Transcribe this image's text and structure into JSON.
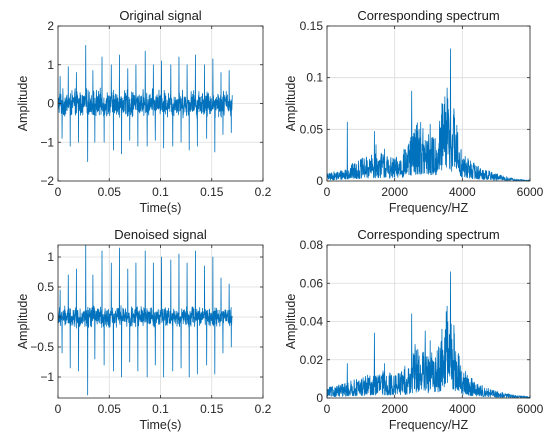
{
  "chart_data": [
    {
      "type": "line",
      "title": "Original signal",
      "xlabel": "Time(s)",
      "ylabel": "Amplitude",
      "xlim": [
        0,
        0.2
      ],
      "ylim": [
        -2,
        2
      ],
      "xticks": [
        0,
        0.05,
        0.1,
        0.15,
        0.2
      ],
      "xtick_labels": [
        "0",
        "0.05",
        "0.1",
        "0.15",
        "0.2"
      ],
      "yticks": [
        -2,
        -1,
        0,
        1,
        2
      ],
      "ytick_labels": [
        "−2",
        "−1",
        "0",
        "1",
        "2"
      ],
      "grid": true,
      "series": [
        {
          "color": "#0072bd",
          "x_range": [
            0,
            0.17
          ],
          "baseline": 0,
          "noise_amplitude": 0.4,
          "peaks": [
            {
              "x": 0.002,
              "y": 0.7
            },
            {
              "x": 0.004,
              "y": -0.9
            },
            {
              "x": 0.01,
              "y": 0.95
            },
            {
              "x": 0.012,
              "y": -1.1
            },
            {
              "x": 0.018,
              "y": 0.8
            },
            {
              "x": 0.02,
              "y": -1.0
            },
            {
              "x": 0.027,
              "y": 1.5
            },
            {
              "x": 0.029,
              "y": -1.5
            },
            {
              "x": 0.034,
              "y": 0.85
            },
            {
              "x": 0.036,
              "y": -1.0
            },
            {
              "x": 0.043,
              "y": 1.2
            },
            {
              "x": 0.045,
              "y": -1.0
            },
            {
              "x": 0.052,
              "y": 1.0
            },
            {
              "x": 0.054,
              "y": -1.2
            },
            {
              "x": 0.06,
              "y": 1.25
            },
            {
              "x": 0.062,
              "y": -1.3
            },
            {
              "x": 0.068,
              "y": 0.9
            },
            {
              "x": 0.07,
              "y": -0.95
            },
            {
              "x": 0.076,
              "y": 1.0
            },
            {
              "x": 0.078,
              "y": -1.1
            },
            {
              "x": 0.085,
              "y": 1.35
            },
            {
              "x": 0.087,
              "y": -1.1
            },
            {
              "x": 0.093,
              "y": 1.0
            },
            {
              "x": 0.095,
              "y": -0.95
            },
            {
              "x": 0.101,
              "y": 1.1
            },
            {
              "x": 0.103,
              "y": -1.15
            },
            {
              "x": 0.11,
              "y": 1.0
            },
            {
              "x": 0.112,
              "y": -1.1
            },
            {
              "x": 0.118,
              "y": 1.2
            },
            {
              "x": 0.12,
              "y": -1.0
            },
            {
              "x": 0.126,
              "y": 1.0
            },
            {
              "x": 0.128,
              "y": -1.2
            },
            {
              "x": 0.134,
              "y": 1.25
            },
            {
              "x": 0.136,
              "y": -1.1
            },
            {
              "x": 0.143,
              "y": 1.0
            },
            {
              "x": 0.145,
              "y": -0.9
            },
            {
              "x": 0.151,
              "y": 1.15
            },
            {
              "x": 0.153,
              "y": -1.25
            },
            {
              "x": 0.159,
              "y": 0.8
            },
            {
              "x": 0.161,
              "y": -0.8
            },
            {
              "x": 0.167,
              "y": 0.85
            },
            {
              "x": 0.169,
              "y": -0.75
            }
          ]
        }
      ]
    },
    {
      "type": "line",
      "title": "Corresponding spectrum",
      "xlabel": "Frequency/HZ",
      "ylabel": "Amplitude",
      "xlim": [
        0,
        6000
      ],
      "ylim": [
        0,
        0.15
      ],
      "xticks": [
        0,
        2000,
        4000,
        6000
      ],
      "xtick_labels": [
        "0",
        "2000",
        "4000",
        "6000"
      ],
      "yticks": [
        0,
        0.05,
        0.1,
        0.15
      ],
      "ytick_labels": [
        "0",
        "0.05",
        "0.1",
        "0.15"
      ],
      "grid": true,
      "series": [
        {
          "color": "#0072bd",
          "x_range": [
            0,
            6000
          ],
          "envelope": [
            [
              0,
              0.004
            ],
            [
              400,
              0.006
            ],
            [
              1000,
              0.012
            ],
            [
              1600,
              0.016
            ],
            [
              2000,
              0.012
            ],
            [
              2400,
              0.02
            ],
            [
              2700,
              0.035
            ],
            [
              3000,
              0.022
            ],
            [
              3300,
              0.03
            ],
            [
              3500,
              0.05
            ],
            [
              3700,
              0.045
            ],
            [
              4000,
              0.015
            ],
            [
              4500,
              0.008
            ],
            [
              5000,
              0.004
            ],
            [
              5600,
              0.001
            ],
            [
              6000,
              0.0005
            ]
          ],
          "peaks": [
            {
              "x": 600,
              "y": 0.057
            },
            {
              "x": 1100,
              "y": 0.02
            },
            {
              "x": 1400,
              "y": 0.048
            },
            {
              "x": 1450,
              "y": 0.035
            },
            {
              "x": 1700,
              "y": 0.031
            },
            {
              "x": 2500,
              "y": 0.087
            },
            {
              "x": 2600,
              "y": 0.05
            },
            {
              "x": 2750,
              "y": 0.04
            },
            {
              "x": 3000,
              "y": 0.045
            },
            {
              "x": 3050,
              "y": 0.055
            },
            {
              "x": 3400,
              "y": 0.075
            },
            {
              "x": 3550,
              "y": 0.09
            },
            {
              "x": 3650,
              "y": 0.128
            },
            {
              "x": 3750,
              "y": 0.07
            },
            {
              "x": 4200,
              "y": 0.012
            }
          ]
        }
      ]
    },
    {
      "type": "line",
      "title": "Denoised signal",
      "xlabel": "Time(s)",
      "ylabel": "Amplitude",
      "xlim": [
        0,
        0.2
      ],
      "ylim": [
        -1.35,
        1.2
      ],
      "xticks": [
        0,
        0.05,
        0.1,
        0.15,
        0.2
      ],
      "xtick_labels": [
        "0",
        "0.05",
        "0.1",
        "0.15",
        "0.2"
      ],
      "yticks": [
        -1,
        -0.5,
        0,
        0.5,
        1
      ],
      "ytick_labels": [
        "−1",
        "−0.5",
        "0",
        "0.5",
        "1"
      ],
      "grid": true,
      "series": [
        {
          "color": "#0072bd",
          "x_range": [
            0,
            0.17
          ],
          "baseline": 0,
          "noise_amplitude": 0.2,
          "peaks": [
            {
              "x": 0.002,
              "y": 0.45
            },
            {
              "x": 0.004,
              "y": -0.6
            },
            {
              "x": 0.01,
              "y": 0.7
            },
            {
              "x": 0.012,
              "y": -0.85
            },
            {
              "x": 0.018,
              "y": 0.8
            },
            {
              "x": 0.02,
              "y": -0.9
            },
            {
              "x": 0.027,
              "y": 1.2
            },
            {
              "x": 0.029,
              "y": -1.3
            },
            {
              "x": 0.034,
              "y": 0.7
            },
            {
              "x": 0.036,
              "y": -0.7
            },
            {
              "x": 0.043,
              "y": 1.1
            },
            {
              "x": 0.045,
              "y": -0.8
            },
            {
              "x": 0.052,
              "y": 0.9
            },
            {
              "x": 0.054,
              "y": -0.9
            },
            {
              "x": 0.06,
              "y": 1.15
            },
            {
              "x": 0.062,
              "y": -1.0
            },
            {
              "x": 0.068,
              "y": 0.8
            },
            {
              "x": 0.07,
              "y": -0.75
            },
            {
              "x": 0.076,
              "y": 0.9
            },
            {
              "x": 0.078,
              "y": -0.9
            },
            {
              "x": 0.085,
              "y": 1.1
            },
            {
              "x": 0.087,
              "y": -1.0
            },
            {
              "x": 0.093,
              "y": 0.9
            },
            {
              "x": 0.095,
              "y": -0.8
            },
            {
              "x": 0.101,
              "y": 1.0
            },
            {
              "x": 0.103,
              "y": -1.0
            },
            {
              "x": 0.11,
              "y": 0.95
            },
            {
              "x": 0.112,
              "y": -0.9
            },
            {
              "x": 0.118,
              "y": 1.05
            },
            {
              "x": 0.12,
              "y": -0.85
            },
            {
              "x": 0.126,
              "y": 0.9
            },
            {
              "x": 0.128,
              "y": -1.0
            },
            {
              "x": 0.134,
              "y": 1.1
            },
            {
              "x": 0.136,
              "y": -0.95
            },
            {
              "x": 0.143,
              "y": 0.85
            },
            {
              "x": 0.145,
              "y": -0.8
            },
            {
              "x": 0.151,
              "y": 1.0
            },
            {
              "x": 0.153,
              "y": -0.95
            },
            {
              "x": 0.159,
              "y": 0.65
            },
            {
              "x": 0.161,
              "y": -0.6
            },
            {
              "x": 0.167,
              "y": 0.55
            },
            {
              "x": 0.169,
              "y": -0.5
            }
          ]
        }
      ]
    },
    {
      "type": "line",
      "title": "Corresponding spectrum",
      "xlabel": "Frequency/HZ",
      "ylabel": "Amplitude",
      "xlim": [
        0,
        6000
      ],
      "ylim": [
        0,
        0.08
      ],
      "xticks": [
        0,
        2000,
        4000,
        6000
      ],
      "xtick_labels": [
        "0",
        "2000",
        "4000",
        "6000"
      ],
      "yticks": [
        0,
        0.02,
        0.04,
        0.06,
        0.08
      ],
      "ytick_labels": [
        "0",
        "0.02",
        "0.04",
        "0.06",
        "0.08"
      ],
      "grid": true,
      "series": [
        {
          "color": "#0072bd",
          "x_range": [
            0,
            6000
          ],
          "envelope": [
            [
              0,
              0.003
            ],
            [
              400,
              0.004
            ],
            [
              1000,
              0.006
            ],
            [
              1600,
              0.008
            ],
            [
              2000,
              0.007
            ],
            [
              2400,
              0.01
            ],
            [
              2700,
              0.016
            ],
            [
              3000,
              0.012
            ],
            [
              3300,
              0.016
            ],
            [
              3500,
              0.026
            ],
            [
              3700,
              0.022
            ],
            [
              4000,
              0.008
            ],
            [
              4500,
              0.004
            ],
            [
              5000,
              0.002
            ],
            [
              5600,
              0.0008
            ],
            [
              6000,
              0.0004
            ]
          ],
          "peaks": [
            {
              "x": 600,
              "y": 0.018
            },
            {
              "x": 1100,
              "y": 0.009
            },
            {
              "x": 1400,
              "y": 0.034
            },
            {
              "x": 1700,
              "y": 0.018
            },
            {
              "x": 2500,
              "y": 0.044
            },
            {
              "x": 2600,
              "y": 0.028
            },
            {
              "x": 2900,
              "y": 0.035
            },
            {
              "x": 3050,
              "y": 0.03
            },
            {
              "x": 3400,
              "y": 0.036
            },
            {
              "x": 3550,
              "y": 0.048
            },
            {
              "x": 3650,
              "y": 0.066
            },
            {
              "x": 3750,
              "y": 0.038
            },
            {
              "x": 4100,
              "y": 0.014
            }
          ]
        }
      ]
    }
  ]
}
